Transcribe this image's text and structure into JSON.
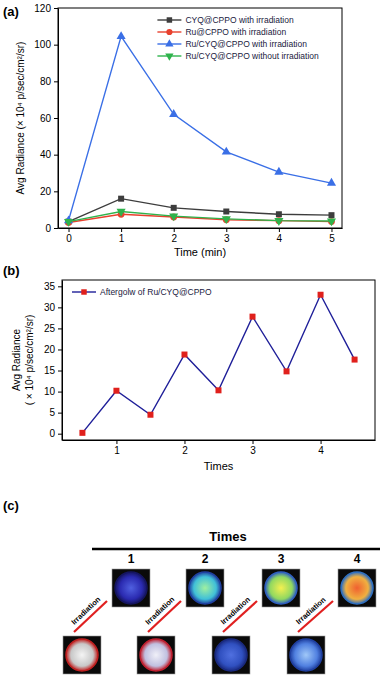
{
  "chart_data": [
    {
      "type": "line",
      "title": "(a)",
      "x_label": "Time (min)",
      "y_label": "Avg Radiance (× 10⁴ p/sec/cm²/sr)",
      "x": [
        0,
        1,
        2,
        3,
        4,
        5
      ],
      "xlim": [
        -0.2,
        5.2
      ],
      "xticks": [
        0,
        1,
        2,
        3,
        4,
        5
      ],
      "ylim": [
        0,
        120
      ],
      "yticks": [
        0,
        20,
        40,
        60,
        80,
        100,
        120
      ],
      "grid": false,
      "legend": "upper right",
      "series": [
        {
          "name": "CYQ@CPPO with irradiation",
          "color": "#3d3d3d",
          "marker": "square",
          "values": [
            3.5,
            16,
            11,
            9,
            7.5,
            7
          ]
        },
        {
          "name": "Ru@CPPO with irradiation",
          "color": "#e8412e",
          "marker": "circle",
          "values": [
            3,
            7.5,
            6,
            4.5,
            4,
            3.5
          ]
        },
        {
          "name": "Ru/CYQ@CPPO with irradiation",
          "color": "#3a6fe6",
          "marker": "triangle-up",
          "values": [
            4,
            104.5,
            62,
            41.5,
            30.5,
            24.5
          ]
        },
        {
          "name": "Ru/CYQ@CPPO without irradiation",
          "color": "#2fb34c",
          "marker": "triangle-down",
          "values": [
            3.5,
            9,
            6.5,
            5,
            4,
            3.8
          ]
        }
      ]
    },
    {
      "type": "line",
      "title": "(b)",
      "x_label": "Times",
      "y_label": [
        "Avg Radiance",
        "( × 10⁴ p/sec/cm²/sr)"
      ],
      "x": [
        0.5,
        1,
        1.5,
        2,
        2.5,
        3,
        3.5,
        4,
        4.5
      ],
      "xlim": [
        0.2,
        4.8
      ],
      "xticks": [
        1,
        2,
        3,
        4
      ],
      "ylim": [
        -1.5,
        36.5
      ],
      "yticks": [
        0,
        5,
        10,
        15,
        20,
        25,
        30,
        35
      ],
      "grid": false,
      "legend": "upper left",
      "series": [
        {
          "name": "Aftergolw of Ru/CYQ@CPPO",
          "color": "#1f1f99",
          "marker": "square",
          "colors": [
            "#e0201c",
            "#e0201c",
            "#e0201c",
            "#e0201c",
            "#e0201c",
            "#e0201c",
            "#e0201c",
            "#e0201c",
            "#e0201c"
          ],
          "values": [
            0.2,
            10.2,
            4.5,
            18.8,
            10.3,
            27.8,
            14.8,
            33,
            17.6
          ]
        }
      ]
    }
  ],
  "diagram": {
    "label": "(c)",
    "title": "Times",
    "steps": [
      "1",
      "2",
      "3",
      "4"
    ],
    "arrow_label": "Irradiation"
  }
}
